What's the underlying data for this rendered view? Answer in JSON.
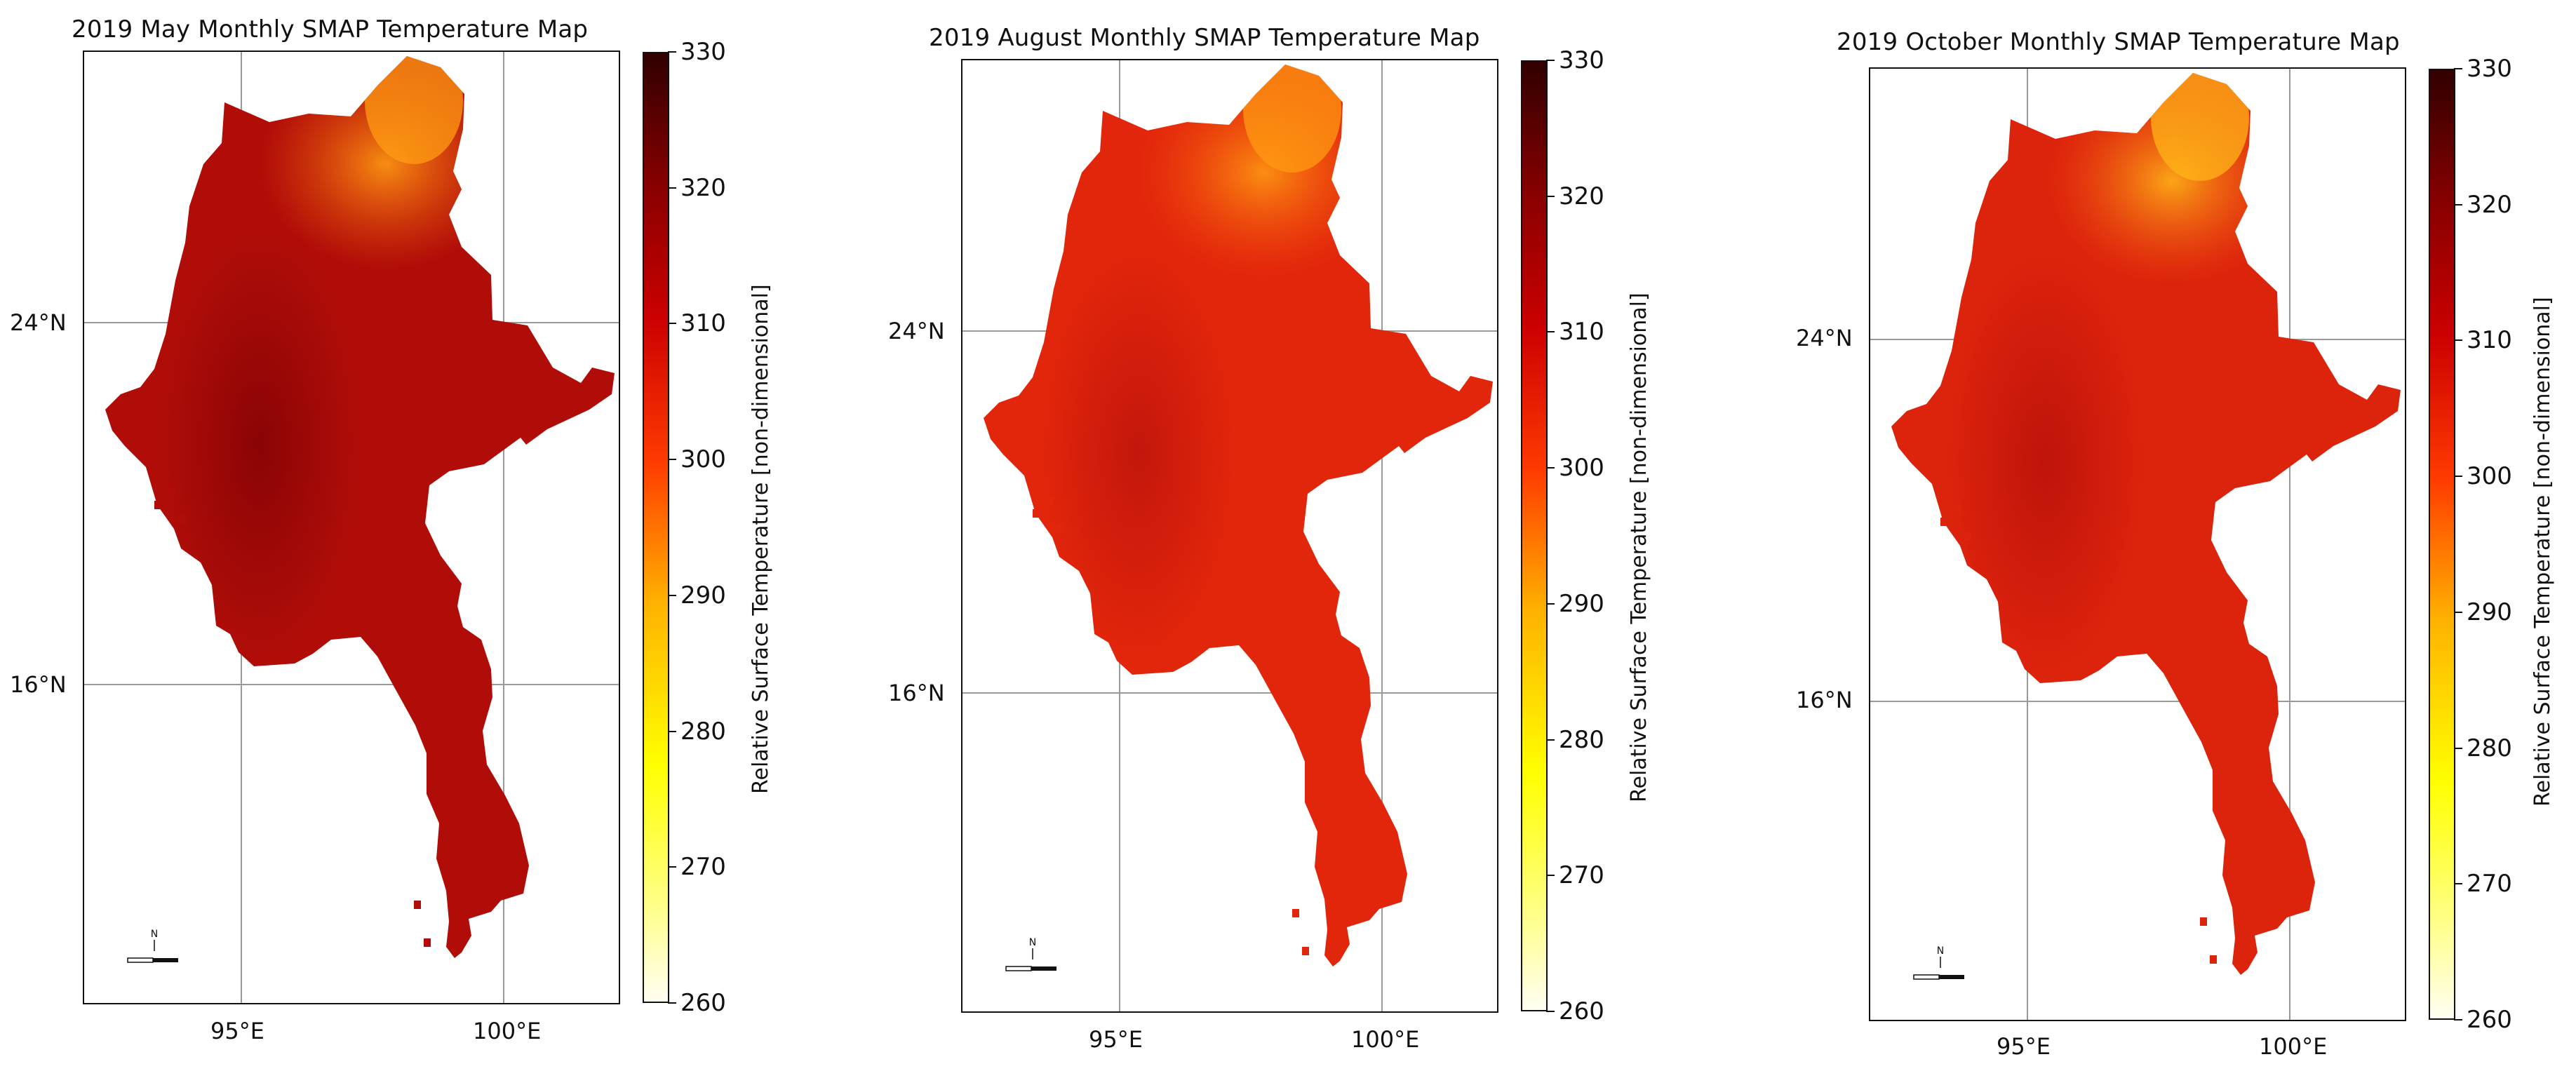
{
  "figure": {
    "colorbar": {
      "label": "Relative Surface Temperature [non-dimensional]",
      "ticks": [
        "330",
        "320",
        "310",
        "300",
        "290",
        "280",
        "270",
        "260"
      ],
      "range": [
        260,
        330
      ],
      "colormap": [
        "#fffef2",
        "#ffff00",
        "#ffb200",
        "#ff3a00",
        "#cc0000",
        "#880000",
        "#300000"
      ]
    },
    "axes": {
      "lat_ticks": [
        "24°N",
        "16°N"
      ],
      "lon_ticks": [
        "95°E",
        "100°E"
      ]
    },
    "north_arrow": "N",
    "panels": [
      {
        "title": "2019 May Monthly SMAP Temperature Map",
        "mean_temp": 314,
        "fill_color": "#b00d08",
        "core_color": "#8a0405",
        "north_color": "#f25a0c",
        "peak_color": "#ff9c13"
      },
      {
        "title": "2019 August Monthly SMAP Temperature Map",
        "mean_temp": 306,
        "fill_color": "#e2260b",
        "core_color": "#c4160c",
        "north_color": "#f4520d",
        "peak_color": "#ff9a12"
      },
      {
        "title": "2019 October Monthly SMAP Temperature Map",
        "mean_temp": 307,
        "fill_color": "#dc230c",
        "core_color": "#bf130b",
        "north_color": "#f25a10",
        "peak_color": "#ffb418"
      }
    ]
  }
}
